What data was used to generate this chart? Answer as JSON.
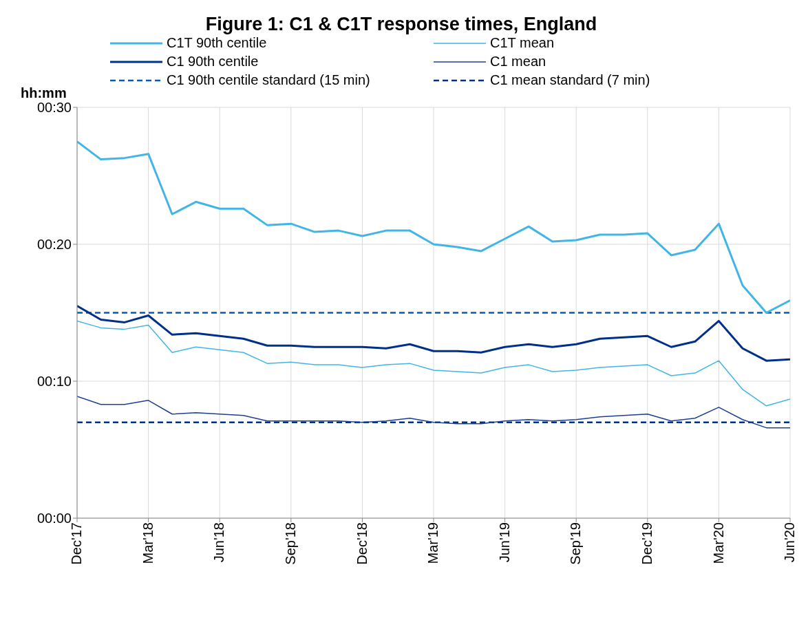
{
  "chart_data": {
    "type": "line",
    "title": "Figure 1: C1 & C1T response times, England",
    "ylabel": "hh:mm",
    "categories": [
      "Dec'17",
      null,
      null,
      "Mar'18",
      null,
      null,
      "Jun'18",
      null,
      null,
      "Sep'18",
      null,
      null,
      "Dec'18",
      null,
      null,
      "Mar'19",
      null,
      null,
      "Jun'19",
      null,
      null,
      "Sep'19",
      null,
      null,
      "Dec'19",
      null,
      null,
      "Mar'20",
      null,
      null,
      "Jun'20"
    ],
    "series": [
      {
        "name": "C1T 90th centile",
        "color": "#41b6e6",
        "values": [
          27.5,
          26.2,
          26.3,
          26.6,
          22.2,
          23.1,
          22.6,
          22.6,
          21.4,
          21.5,
          20.9,
          21.0,
          20.6,
          21.0,
          21.0,
          20.0,
          19.8,
          19.5,
          20.4,
          21.3,
          20.2,
          20.3,
          20.7,
          20.7,
          20.8,
          19.2,
          19.6,
          21.5,
          17.0,
          15.0,
          15.9
        ]
      },
      {
        "name": "C1T mean",
        "color": "#41b6e6",
        "values": [
          14.4,
          13.9,
          13.8,
          14.1,
          12.1,
          12.5,
          12.3,
          12.1,
          11.3,
          11.4,
          11.2,
          11.2,
          11.0,
          11.2,
          11.3,
          10.8,
          10.7,
          10.6,
          11.0,
          11.2,
          10.7,
          10.8,
          11.0,
          11.1,
          11.2,
          10.4,
          10.6,
          11.5,
          9.4,
          8.2,
          8.7
        ]
      },
      {
        "name": "C1 90th centile",
        "color": "#003087",
        "values": [
          15.5,
          14.5,
          14.3,
          14.8,
          13.4,
          13.5,
          13.3,
          13.1,
          12.6,
          12.6,
          12.5,
          12.5,
          12.5,
          12.4,
          12.7,
          12.2,
          12.2,
          12.1,
          12.5,
          12.7,
          12.5,
          12.7,
          13.1,
          13.2,
          13.3,
          12.5,
          12.9,
          14.4,
          12.4,
          11.5,
          11.6
        ]
      },
      {
        "name": "C1 mean",
        "color": "#1c3f94",
        "values": [
          8.9,
          8.3,
          8.3,
          8.6,
          7.6,
          7.7,
          7.6,
          7.5,
          7.1,
          7.1,
          7.1,
          7.1,
          7.0,
          7.1,
          7.3,
          7.0,
          6.9,
          6.9,
          7.1,
          7.2,
          7.1,
          7.2,
          7.4,
          7.5,
          7.6,
          7.1,
          7.3,
          8.1,
          7.2,
          6.6,
          6.6
        ]
      }
    ],
    "ref_lines": [
      {
        "axis": "y",
        "value": 15,
        "label": "C1 90th centile standard (15 min)",
        "color": "#005eb8",
        "line_style": "dashed"
      },
      {
        "axis": "y",
        "value": 7,
        "label": "C1 mean standard (7 min)",
        "color": "#003087",
        "line_style": "dashed"
      }
    ],
    "ylim": [
      0,
      30
    ],
    "yticks": [
      {
        "value": 0,
        "label": "00:00"
      },
      {
        "value": 10,
        "label": "00:10"
      },
      {
        "value": 20,
        "label": "00:20"
      },
      {
        "value": 30,
        "label": "00:30"
      }
    ],
    "grid": true,
    "legend": "top",
    "marker": "none",
    "line_style": "solid"
  }
}
